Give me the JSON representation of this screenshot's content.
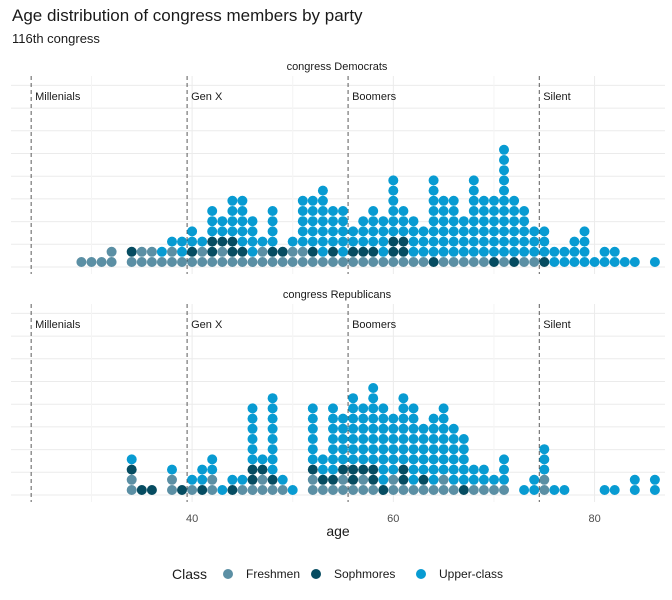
{
  "chart_data": {
    "type": "dotplot",
    "title": "Age distribution of congress members by party",
    "subtitle": "116th congress",
    "xlabel": "age",
    "xlim": [
      22,
      87
    ],
    "x_ticks": [
      40,
      60,
      80
    ],
    "grid": true,
    "legend_title": "Class",
    "legend_position": "bottom",
    "classes": [
      {
        "name": "Freshmen",
        "color": "#5b8fa4"
      },
      {
        "name": "Sophmores",
        "color": "#064c61"
      },
      {
        "name": "Upper-class",
        "color": "#089bd2"
      }
    ],
    "generations": [
      {
        "name": "Millenials",
        "start": 24
      },
      {
        "name": "Gen X",
        "start": 39.5
      },
      {
        "name": "Boomers",
        "start": 55.5
      },
      {
        "name": "Silent",
        "start": 74.5
      }
    ],
    "panels": [
      {
        "title": "congress Democrats",
        "bins": [
          {
            "age": 29,
            "Freshmen": 1
          },
          {
            "age": 30,
            "Freshmen": 1
          },
          {
            "age": 31,
            "Freshmen": 1
          },
          {
            "age": 32,
            "Freshmen": 2
          },
          {
            "age": 34,
            "Freshmen": 1,
            "Sophmores": 1
          },
          {
            "age": 35,
            "Freshmen": 2
          },
          {
            "age": 36,
            "Freshmen": 2
          },
          {
            "age": 37,
            "Freshmen": 1,
            "Upper-class": 1
          },
          {
            "age": 38,
            "Freshmen": 2,
            "Upper-class": 1
          },
          {
            "age": 39,
            "Freshmen": 1,
            "Upper-class": 2
          },
          {
            "age": 40,
            "Freshmen": 1,
            "Sophmores": 1,
            "Upper-class": 2
          },
          {
            "age": 41,
            "Freshmen": 2,
            "Upper-class": 1
          },
          {
            "age": 42,
            "Freshmen": 1,
            "Sophmores": 2,
            "Upper-class": 3
          },
          {
            "age": 43,
            "Freshmen": 2,
            "Sophmores": 1,
            "Upper-class": 2
          },
          {
            "age": 44,
            "Freshmen": 1,
            "Sophmores": 2,
            "Upper-class": 4
          },
          {
            "age": 45,
            "Freshmen": 1,
            "Sophmores": 1,
            "Upper-class": 5
          },
          {
            "age": 46,
            "Freshmen": 1,
            "Upper-class": 4
          },
          {
            "age": 47,
            "Freshmen": 2,
            "Upper-class": 1
          },
          {
            "age": 48,
            "Freshmen": 1,
            "Sophmores": 1,
            "Upper-class": 4
          },
          {
            "age": 49,
            "Freshmen": 1,
            "Sophmores": 1
          },
          {
            "age": 50,
            "Freshmen": 2,
            "Upper-class": 1
          },
          {
            "age": 51,
            "Freshmen": 2,
            "Upper-class": 5
          },
          {
            "age": 52,
            "Freshmen": 1,
            "Sophmores": 1,
            "Upper-class": 5
          },
          {
            "age": 53,
            "Freshmen": 1,
            "Upper-class": 7
          },
          {
            "age": 54,
            "Freshmen": 1,
            "Sophmores": 1,
            "Upper-class": 4
          },
          {
            "age": 55,
            "Freshmen": 1,
            "Upper-class": 5
          },
          {
            "age": 56,
            "Freshmen": 1,
            "Sophmores": 1,
            "Upper-class": 2
          },
          {
            "age": 57,
            "Freshmen": 1,
            "Sophmores": 1,
            "Upper-class": 3
          },
          {
            "age": 58,
            "Freshmen": 1,
            "Sophmores": 1,
            "Upper-class": 4
          },
          {
            "age": 59,
            "Freshmen": 1,
            "Upper-class": 4
          },
          {
            "age": 60,
            "Freshmen": 1,
            "Sophmores": 2,
            "Upper-class": 6
          },
          {
            "age": 61,
            "Freshmen": 1,
            "Sophmores": 2,
            "Upper-class": 3
          },
          {
            "age": 62,
            "Freshmen": 1,
            "Upper-class": 4
          },
          {
            "age": 63,
            "Freshmen": 1,
            "Upper-class": 3
          },
          {
            "age": 64,
            "Sophmores": 1,
            "Upper-class": 8
          },
          {
            "age": 65,
            "Freshmen": 1,
            "Upper-class": 6
          },
          {
            "age": 66,
            "Freshmen": 1,
            "Upper-class": 6
          },
          {
            "age": 67,
            "Freshmen": 1,
            "Upper-class": 4
          },
          {
            "age": 68,
            "Freshmen": 1,
            "Upper-class": 8
          },
          {
            "age": 69,
            "Freshmen": 1,
            "Upper-class": 6
          },
          {
            "age": 70,
            "Sophmores": 1,
            "Upper-class": 6
          },
          {
            "age": 71,
            "Freshmen": 1,
            "Upper-class": 11
          },
          {
            "age": 72,
            "Sophmores": 1,
            "Upper-class": 6
          },
          {
            "age": 73,
            "Freshmen": 1,
            "Upper-class": 5
          },
          {
            "age": 74,
            "Freshmen": 1,
            "Upper-class": 3
          },
          {
            "age": 75,
            "Sophmores": 1,
            "Upper-class": 3
          },
          {
            "age": 76,
            "Upper-class": 2
          },
          {
            "age": 77,
            "Upper-class": 2
          },
          {
            "age": 78,
            "Upper-class": 3
          },
          {
            "age": 79,
            "Upper-class": 4
          },
          {
            "age": 80,
            "Upper-class": 1
          },
          {
            "age": 81,
            "Upper-class": 2
          },
          {
            "age": 82,
            "Upper-class": 2
          },
          {
            "age": 83,
            "Upper-class": 1
          },
          {
            "age": 84,
            "Upper-class": 1
          },
          {
            "age": 86,
            "Upper-class": 1
          }
        ]
      },
      {
        "title": "congress Republicans",
        "bins": [
          {
            "age": 34,
            "Freshmen": 2,
            "Sophmores": 1,
            "Upper-class": 1
          },
          {
            "age": 35,
            "Sophmores": 1
          },
          {
            "age": 36,
            "Sophmores": 1
          },
          {
            "age": 38,
            "Freshmen": 2,
            "Upper-class": 1
          },
          {
            "age": 39,
            "Sophmores": 1
          },
          {
            "age": 40,
            "Freshmen": 1,
            "Upper-class": 1
          },
          {
            "age": 41,
            "Sophmores": 1,
            "Upper-class": 2
          },
          {
            "age": 42,
            "Freshmen": 2,
            "Upper-class": 2
          },
          {
            "age": 43,
            "Upper-class": 1
          },
          {
            "age": 44,
            "Sophmores": 1,
            "Upper-class": 1
          },
          {
            "age": 45,
            "Freshmen": 1,
            "Upper-class": 1
          },
          {
            "age": 46,
            "Freshmen": 1,
            "Sophmores": 2,
            "Upper-class": 6
          },
          {
            "age": 47,
            "Freshmen": 2,
            "Sophmores": 1,
            "Upper-class": 1
          },
          {
            "age": 48,
            "Freshmen": 1,
            "Sophmores": 1,
            "Upper-class": 8
          },
          {
            "age": 49,
            "Freshmen": 1,
            "Upper-class": 1
          },
          {
            "age": 50,
            "Upper-class": 1
          },
          {
            "age": 52,
            "Freshmen": 2,
            "Sophmores": 1,
            "Upper-class": 6
          },
          {
            "age": 53,
            "Freshmen": 1,
            "Sophmores": 1,
            "Upper-class": 2
          },
          {
            "age": 54,
            "Freshmen": 1,
            "Sophmores": 1,
            "Upper-class": 7
          },
          {
            "age": 55,
            "Freshmen": 2,
            "Sophmores": 1,
            "Upper-class": 5
          },
          {
            "age": 56,
            "Freshmen": 1,
            "Sophmores": 2,
            "Upper-class": 7
          },
          {
            "age": 57,
            "Freshmen": 2,
            "Sophmores": 1,
            "Upper-class": 6
          },
          {
            "age": 58,
            "Freshmen": 1,
            "Sophmores": 2,
            "Upper-class": 8
          },
          {
            "age": 59,
            "Sophmores": 1,
            "Upper-class": 8
          },
          {
            "age": 60,
            "Freshmen": 2,
            "Upper-class": 6
          },
          {
            "age": 61,
            "Freshmen": 1,
            "Sophmores": 2,
            "Upper-class": 7
          },
          {
            "age": 62,
            "Freshmen": 1,
            "Upper-class": 8
          },
          {
            "age": 63,
            "Freshmen": 1,
            "Sophmores": 1,
            "Upper-class": 5
          },
          {
            "age": 64,
            "Freshmen": 1,
            "Upper-class": 7
          },
          {
            "age": 65,
            "Freshmen": 2,
            "Upper-class": 7
          },
          {
            "age": 66,
            "Freshmen": 1,
            "Upper-class": 6
          },
          {
            "age": 67,
            "Sophmores": 1,
            "Upper-class": 5
          },
          {
            "age": 68,
            "Freshmen": 1,
            "Upper-class": 2
          },
          {
            "age": 69,
            "Freshmen": 1,
            "Upper-class": 2
          },
          {
            "age": 70,
            "Freshmen": 1,
            "Upper-class": 1
          },
          {
            "age": 71,
            "Freshmen": 1,
            "Upper-class": 3
          },
          {
            "age": 73,
            "Upper-class": 1
          },
          {
            "age": 74,
            "Upper-class": 2
          },
          {
            "age": 75,
            "Freshmen": 2,
            "Upper-class": 3
          },
          {
            "age": 76,
            "Upper-class": 1
          },
          {
            "age": 77,
            "Upper-class": 1
          },
          {
            "age": 81,
            "Upper-class": 1
          },
          {
            "age": 82,
            "Upper-class": 1
          },
          {
            "age": 84,
            "Upper-class": 2
          },
          {
            "age": 86,
            "Upper-class": 2
          }
        ]
      }
    ]
  }
}
